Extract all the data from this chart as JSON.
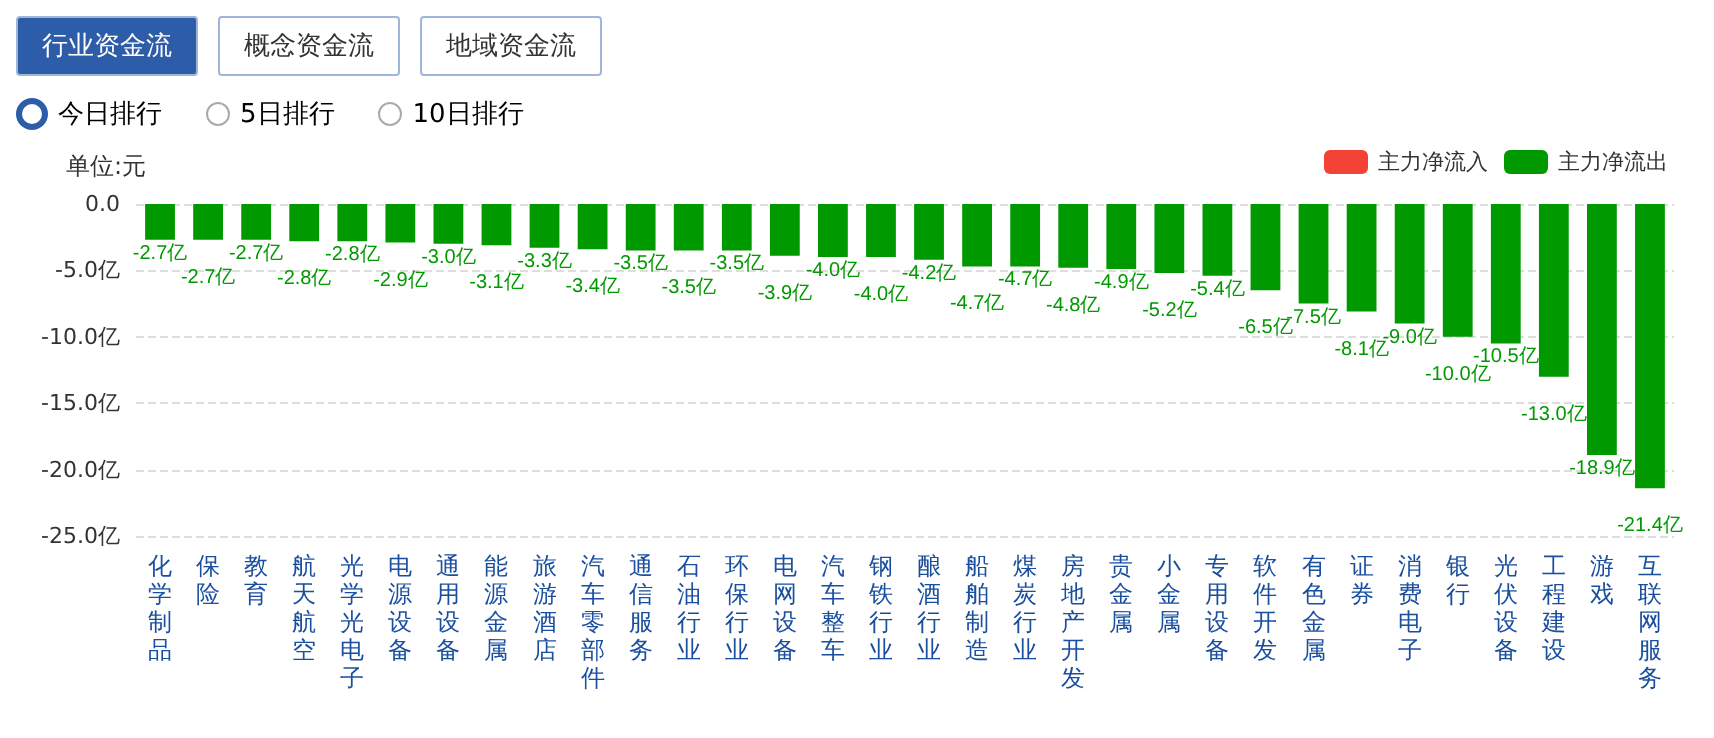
{
  "chart_data": {
    "type": "bar",
    "ylabel": "单位:元",
    "annotations": [
      "行业资金流",
      "概念资金流",
      "地域资金流",
      "今日排行",
      "5日排行",
      "10日排行"
    ],
    "categories": [
      "化学制品",
      "保险",
      "教育",
      "航天航空",
      "光学光电子",
      "电源设备",
      "通用设备",
      "能源金属",
      "旅游酒店",
      "汽车零部件",
      "通信服务",
      "石油行业",
      "环保行业",
      "电网设备",
      "汽车整车",
      "钢铁行业",
      "酿酒行业",
      "船舶制造",
      "煤炭行业",
      "房地产开发",
      "贵金属",
      "小金属",
      "专用设备",
      "软件开发",
      "有色金属",
      "证券",
      "消费电子",
      "银行",
      "光伏设备",
      "工程建设",
      "游戏",
      "互联网服务"
    ],
    "series": [
      {
        "name": "主力净流入",
        "color": "#f44336",
        "values": [
          null,
          null,
          null,
          null,
          null,
          null,
          null,
          null,
          null,
          null,
          null,
          null,
          null,
          null,
          null,
          null,
          null,
          null,
          null,
          null,
          null,
          null,
          null,
          null,
          null,
          null,
          null,
          null,
          null,
          null,
          null,
          null
        ]
      },
      {
        "name": "主力净流出",
        "color": "#009900",
        "values": [
          -2.7,
          -2.7,
          -2.7,
          -2.8,
          -2.8,
          -2.9,
          -3.0,
          -3.1,
          -3.3,
          -3.4,
          -3.5,
          -3.5,
          -3.5,
          -3.9,
          -4.0,
          -4.0,
          -4.2,
          -4.7,
          -4.7,
          -4.8,
          -4.9,
          -5.2,
          -5.4,
          -6.5,
          -7.5,
          -8.1,
          -9.0,
          -10.0,
          -10.5,
          -13.0,
          -18.9,
          -21.4
        ],
        "value_labels": [
          "-2.7亿",
          "-2.7亿",
          "-2.7亿",
          "-2.8亿",
          "-2.8亿",
          "-2.9亿",
          "-3.0亿",
          "-3.1亿",
          "-3.3亿",
          "-3.4亿",
          "-3.5亿",
          "-3.5亿",
          "-3.5亿",
          "-3.9亿",
          "-4.0亿",
          "-4.0亿",
          "-4.2亿",
          "-4.7亿",
          "-4.7亿",
          "-4.8亿",
          "-4.9亿",
          "-5.2亿",
          "-5.4亿",
          "-6.5亿",
          "-7.5亿",
          "-8.1亿",
          "-9.0亿",
          "-10.0亿",
          "-10.5亿",
          "-13.0亿",
          "-18.9亿",
          "-21.4亿"
        ]
      }
    ],
    "ylim": [
      -25,
      0
    ],
    "yticks": [
      {
        "value": 0,
        "label": "0.0"
      },
      {
        "value": -5,
        "label": "-5.0亿"
      },
      {
        "value": -10,
        "label": "-10.0亿"
      },
      {
        "value": -15,
        "label": "-15.0亿"
      },
      {
        "value": -20,
        "label": "-20.0亿"
      },
      {
        "value": -25,
        "label": "-25.0亿"
      }
    ],
    "grid": "y",
    "legend": "top right"
  }
}
